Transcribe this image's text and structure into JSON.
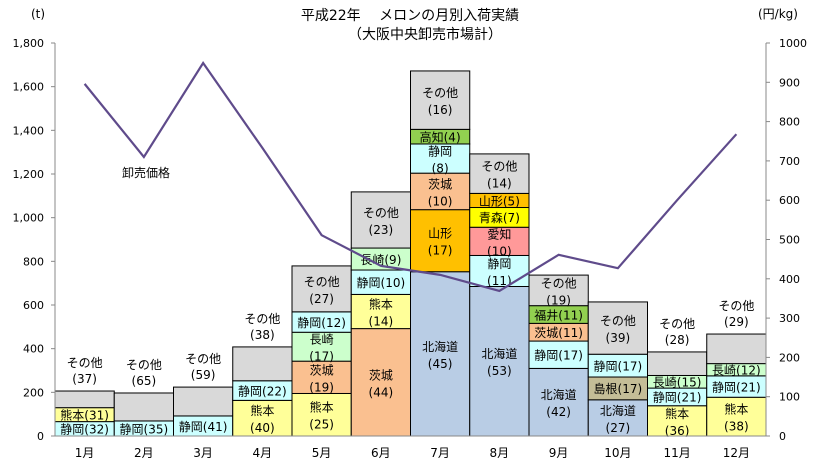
{
  "chart_data": {
    "type": "bar",
    "stacked": true,
    "title": "平成22年　 メロンの月別入荷実績",
    "subtitle": "（大阪中央卸売市場計）",
    "ylabel": "(t)",
    "y2label": "(円/kg)",
    "ylim": [
      0,
      1800
    ],
    "y2lim": [
      0,
      1000
    ],
    "yticks": [
      "0",
      "200",
      "400",
      "600",
      "800",
      "1,000",
      "1,200",
      "1,400",
      "1,600",
      "1,800"
    ],
    "y2ticks": [
      "0",
      "100",
      "200",
      "300",
      "400",
      "500",
      "600",
      "700",
      "800",
      "900",
      "1000"
    ],
    "categories": [
      "1月",
      "2月",
      "3月",
      "4月",
      "5月",
      "6月",
      "7月",
      "8月",
      "9月",
      "10月",
      "11月",
      "12月"
    ],
    "totals": [
      206,
      197,
      224,
      408,
      779,
      1118,
      1672,
      1292,
      737,
      614,
      385,
      467
    ],
    "others_label_outside": [
      true,
      true,
      true,
      true,
      false,
      false,
      false,
      false,
      false,
      false,
      true,
      true
    ],
    "colors": {
      "静岡": "#ccffff",
      "熊本": "#ffff99",
      "その他": "#d9d9d9",
      "茨城": "#fac090",
      "長崎": "#ccffcc",
      "北海道": "#b9cde5",
      "山形": "#ffc000",
      "高知": "#92d050",
      "愛知": "#ff9999",
      "青森": "#ffff00",
      "福井": "#92d050",
      "島根": "#c4bd97"
    },
    "shares": [
      [
        [
          "静岡",
          32
        ],
        [
          "熊本",
          31
        ],
        [
          "その他",
          37
        ]
      ],
      [
        [
          "静岡",
          35
        ],
        [
          "その他",
          65
        ]
      ],
      [
        [
          "静岡",
          41
        ],
        [
          "その他",
          59
        ]
      ],
      [
        [
          "熊本",
          40
        ],
        [
          "静岡",
          22
        ],
        [
          "その他",
          38
        ]
      ],
      [
        [
          "熊本",
          25
        ],
        [
          "茨城",
          19
        ],
        [
          "長崎",
          17
        ],
        [
          "静岡",
          12
        ],
        [
          "その他",
          27
        ]
      ],
      [
        [
          "茨城",
          44
        ],
        [
          "熊本",
          14
        ],
        [
          "静岡",
          10
        ],
        [
          "長崎",
          9
        ],
        [
          "その他",
          23
        ]
      ],
      [
        [
          "北海道",
          45
        ],
        [
          "山形",
          17
        ],
        [
          "茨城",
          10
        ],
        [
          "静岡",
          8
        ],
        [
          "高知",
          4
        ],
        [
          "その他",
          16
        ]
      ],
      [
        [
          "北海道",
          53
        ],
        [
          "静岡",
          11
        ],
        [
          "愛知",
          10
        ],
        [
          "青森",
          7
        ],
        [
          "山形",
          5
        ],
        [
          "その他",
          14
        ]
      ],
      [
        [
          "北海道",
          42
        ],
        [
          "静岡",
          17
        ],
        [
          "茨城",
          11
        ],
        [
          "福井",
          11
        ],
        [
          "その他",
          19
        ]
      ],
      [
        [
          "北海道",
          27
        ],
        [
          "島根",
          17
        ],
        [
          "静岡",
          17
        ],
        [
          "その他",
          39
        ]
      ],
      [
        [
          "熊本",
          36
        ],
        [
          "静岡",
          21
        ],
        [
          "長崎",
          15
        ],
        [
          "その他",
          28
        ]
      ],
      [
        [
          "熊本",
          38
        ],
        [
          "静岡",
          21
        ],
        [
          "長崎",
          12
        ],
        [
          "その他",
          29
        ]
      ]
    ],
    "price_series": {
      "name": "卸売価格",
      "values": [
        896,
        710,
        949,
        733,
        511,
        433,
        410,
        369,
        461,
        427,
        600,
        768
      ],
      "color": "#5f4b8b"
    }
  }
}
